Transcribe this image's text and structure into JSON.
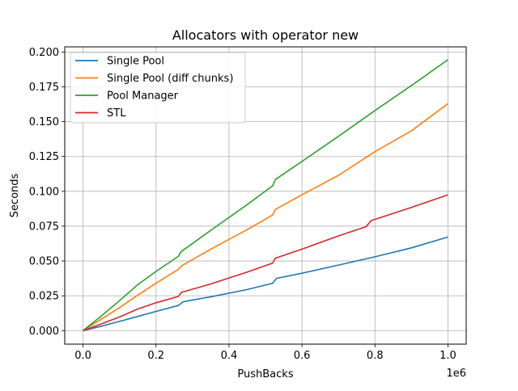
{
  "chart_data": {
    "type": "line",
    "title": "Allocators with operator new",
    "xlabel": "PushBacks",
    "ylabel": "Seconds",
    "x_offset_label": "1e6",
    "xlim": [
      -50000,
      1050000
    ],
    "ylim": [
      -0.0097,
      0.2037
    ],
    "x_ticks": [
      0,
      200000,
      400000,
      600000,
      800000,
      1000000
    ],
    "x_tick_labels": [
      "0.0",
      "0.2",
      "0.4",
      "0.6",
      "0.8",
      "1.0"
    ],
    "y_ticks": [
      0,
      0.025,
      0.05,
      0.075,
      0.1,
      0.125,
      0.15,
      0.175,
      0.2
    ],
    "y_tick_labels": [
      "0.000",
      "0.025",
      "0.050",
      "0.075",
      "0.100",
      "0.125",
      "0.150",
      "0.175",
      "0.200"
    ],
    "grid": true,
    "legend_position": "top-left",
    "series": [
      {
        "name": "Single Pool",
        "color": "#1f77b4",
        "x": [
          0,
          50000,
          100000,
          150000,
          200000,
          261000,
          275000,
          350000,
          450000,
          520000,
          530000,
          600000,
          700000,
          800000,
          900000,
          1000000
        ],
        "y": [
          0,
          0.0032,
          0.0066,
          0.0102,
          0.0138,
          0.018,
          0.0208,
          0.0243,
          0.0295,
          0.034,
          0.0375,
          0.0412,
          0.0471,
          0.053,
          0.0594,
          0.0672
        ]
      },
      {
        "name": "Single Pool (diff chunks)",
        "color": "#ff7f0e",
        "x": [
          0,
          50000,
          100000,
          150000,
          200000,
          261000,
          270000,
          350000,
          450000,
          520000,
          527000,
          600000,
          700000,
          800000,
          900000,
          1000000
        ],
        "y": [
          0,
          0.0082,
          0.0165,
          0.0255,
          0.034,
          0.044,
          0.0465,
          0.0585,
          0.0725,
          0.083,
          0.087,
          0.0975,
          0.1115,
          0.1285,
          0.1435,
          0.163
        ]
      },
      {
        "name": "Pool Manager",
        "color": "#2ca02c",
        "x": [
          0,
          50000,
          100000,
          150000,
          200000,
          262000,
          268000,
          350000,
          450000,
          520000,
          527000,
          600000,
          700000,
          800000,
          900000,
          1000000
        ],
        "y": [
          0,
          0.0105,
          0.0215,
          0.033,
          0.0425,
          0.0535,
          0.0565,
          0.072,
          0.0905,
          0.104,
          0.1085,
          0.1215,
          0.1395,
          0.158,
          0.176,
          0.1945
        ]
      },
      {
        "name": "STL",
        "color": "#d62728",
        "x": [
          0,
          50000,
          100000,
          150000,
          200000,
          261000,
          270000,
          350000,
          450000,
          520000,
          527000,
          600000,
          700000,
          775000,
          790000,
          900000,
          1000000
        ],
        "y": [
          0,
          0.0048,
          0.0098,
          0.0155,
          0.02,
          0.0245,
          0.0275,
          0.0335,
          0.042,
          0.0485,
          0.052,
          0.0585,
          0.068,
          0.0745,
          0.079,
          0.0885,
          0.0975
        ]
      }
    ]
  }
}
